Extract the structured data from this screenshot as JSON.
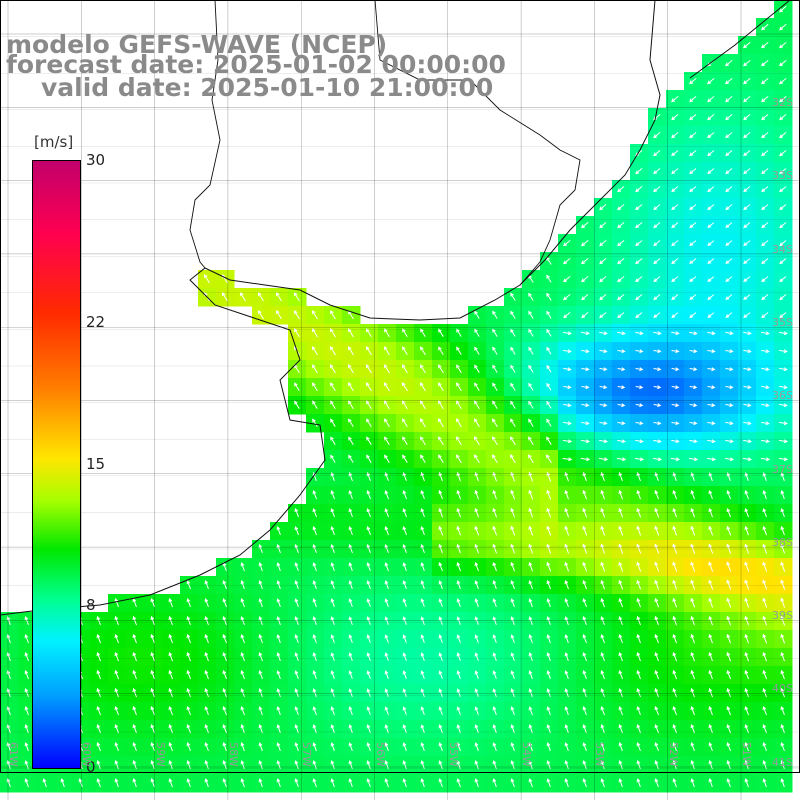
{
  "title": {
    "line1": "modelo GEFS-WAVE (NCEP)",
    "line2": "forecast date: 2025-01-02 00:00:00",
    "line3": "valid date: 2025-01-10 21:00:00"
  },
  "colorbar": {
    "unit": "[m/s]",
    "ticks": [
      {
        "label": "30",
        "value": 30
      },
      {
        "label": "22",
        "value": 22
      },
      {
        "label": "15",
        "value": 15
      },
      {
        "label": "8",
        "value": 8
      },
      {
        "label": "0",
        "value": 0
      }
    ],
    "colors": [
      "#c2006b",
      "#ff0050",
      "#ff2a00",
      "#ff7a00",
      "#ffe600",
      "#a6ff00",
      "#00e800",
      "#00ff8c",
      "#00f2ff",
      "#00a0ff",
      "#0000ff"
    ]
  },
  "axes": {
    "lon_labels": [
      "61W",
      "60W",
      "59W",
      "58W",
      "57W",
      "56W",
      "55W",
      "54W",
      "53W",
      "52W",
      "51W"
    ],
    "lat_labels": [
      "32S",
      "33S",
      "34S",
      "35S",
      "36S",
      "37S",
      "38S",
      "39S",
      "40S",
      "41S"
    ]
  },
  "colors": {
    "coast": "#111111",
    "grid": "#000000",
    "arrow": "#ffffff",
    "land": "#ffffff"
  }
}
